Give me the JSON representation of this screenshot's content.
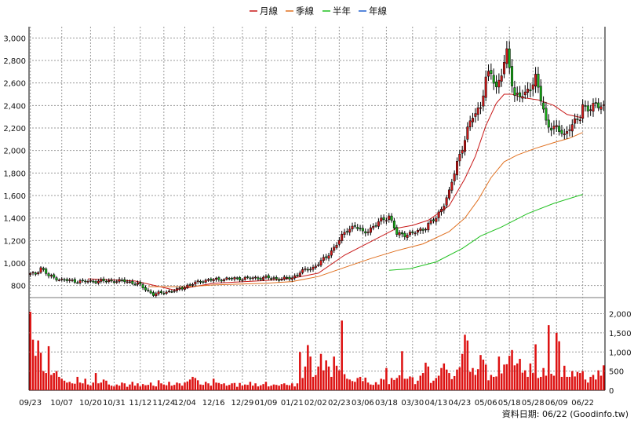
{
  "legend": [
    {
      "label": "月線",
      "color": "#c81818"
    },
    {
      "label": "季線",
      "color": "#e07020"
    },
    {
      "label": "半年",
      "color": "#20c020"
    },
    {
      "label": "年線",
      "color": "#2060d0"
    }
  ],
  "footer": "資料日期: 06/22  (Goodinfo.tw)",
  "colors": {
    "up": "#d01818",
    "down": "#18b018",
    "volume": "#dd1111",
    "wick": "#000000"
  },
  "chart_data": [
    {
      "type": "candlestick",
      "ylim": [
        700,
        3100
      ],
      "yticks": [
        800,
        1000,
        1200,
        1400,
        1600,
        1800,
        2000,
        2200,
        2400,
        2600,
        2800,
        3000
      ],
      "ytick_labels": [
        "800",
        "1,000",
        "1,200",
        "1,400",
        "1,600",
        "1,800",
        "2,000",
        "2,200",
        "2,400",
        "2,600",
        "2,800",
        "3,000"
      ],
      "x_tick_labels": [
        "09/23",
        "10/07",
        "10/20",
        "10/31",
        "11/12",
        "11/24",
        "12/04",
        "12/16",
        "12/29",
        "01/09",
        "01/21",
        "02/02",
        "02/23",
        "03/06",
        "03/18",
        "03/30",
        "04/13",
        "04/23",
        "05/06",
        "05/18",
        "05/28",
        "06/09",
        "06/22"
      ],
      "x_tick_index": [
        0,
        12,
        23,
        32,
        42,
        51,
        59,
        70,
        81,
        90,
        100,
        109,
        118,
        127,
        136,
        146,
        155,
        164,
        174,
        183,
        192,
        201,
        211
      ],
      "grid": true,
      "price_waypoints": [
        [
          0,
          900
        ],
        [
          2,
          905
        ],
        [
          4,
          960
        ],
        [
          7,
          885
        ],
        [
          12,
          850
        ],
        [
          20,
          835
        ],
        [
          28,
          840
        ],
        [
          36,
          840
        ],
        [
          41,
          815
        ],
        [
          47,
          720
        ],
        [
          51,
          740
        ],
        [
          56,
          760
        ],
        [
          60,
          800
        ],
        [
          66,
          845
        ],
        [
          75,
          860
        ],
        [
          83,
          865
        ],
        [
          90,
          870
        ],
        [
          96,
          858
        ],
        [
          100,
          868
        ],
        [
          103,
          920
        ],
        [
          108,
          960
        ],
        [
          113,
          1050
        ],
        [
          118,
          1200
        ],
        [
          121,
          1300
        ],
        [
          124,
          1330
        ],
        [
          127,
          1270
        ],
        [
          131,
          1320
        ],
        [
          134,
          1380
        ],
        [
          137,
          1420
        ],
        [
          140,
          1255
        ],
        [
          146,
          1260
        ],
        [
          151,
          1320
        ],
        [
          155,
          1400
        ],
        [
          160,
          1620
        ],
        [
          163,
          1900
        ],
        [
          166,
          2100
        ],
        [
          169,
          2310
        ],
        [
          172,
          2400
        ],
        [
          174,
          2620
        ],
        [
          176,
          2700
        ],
        [
          178,
          2560
        ],
        [
          180,
          2690
        ],
        [
          182,
          2850
        ],
        [
          185,
          2500
        ],
        [
          189,
          2480
        ],
        [
          193,
          2660
        ],
        [
          197,
          2240
        ],
        [
          201,
          2200
        ],
        [
          204,
          2120
        ],
        [
          206,
          2230
        ],
        [
          208,
          2250
        ],
        [
          210,
          2280
        ],
        [
          211,
          2390
        ]
      ],
      "ma_series": [
        {
          "label": "月線",
          "color": "#c81818",
          "points": [
            [
              22,
              860
            ],
            [
              40,
              840
            ],
            [
              55,
              760
            ],
            [
              70,
              820
            ],
            [
              90,
              845
            ],
            [
              100,
              865
            ],
            [
              110,
              910
            ],
            [
              120,
              1070
            ],
            [
              130,
              1190
            ],
            [
              140,
              1310
            ],
            [
              146,
              1335
            ],
            [
              152,
              1380
            ],
            [
              160,
              1510
            ],
            [
              166,
              1750
            ],
            [
              170,
              1950
            ],
            [
              174,
              2220
            ],
            [
              178,
              2420
            ],
            [
              181,
              2500
            ],
            [
              184,
              2500
            ],
            [
              188,
              2470
            ],
            [
              194,
              2450
            ],
            [
              200,
              2400
            ],
            [
              205,
              2320
            ],
            [
              211,
              2290
            ]
          ]
        },
        {
          "label": "季線",
          "color": "#e07020",
          "points": [
            [
              45,
              790
            ],
            [
              60,
              790
            ],
            [
              70,
              805
            ],
            [
              90,
              820
            ],
            [
              100,
              835
            ],
            [
              110,
              880
            ],
            [
              120,
              960
            ],
            [
              130,
              1040
            ],
            [
              140,
              1110
            ],
            [
              150,
              1170
            ],
            [
              160,
              1280
            ],
            [
              166,
              1400
            ],
            [
              171,
              1560
            ],
            [
              176,
              1760
            ],
            [
              181,
              1900
            ],
            [
              186,
              1960
            ],
            [
              193,
              2020
            ],
            [
              200,
              2070
            ],
            [
              206,
              2110
            ],
            [
              211,
              2160
            ]
          ]
        },
        {
          "label": "半年",
          "color": "#20c020",
          "points": [
            [
              137,
              935
            ],
            [
              145,
              950
            ],
            [
              155,
              1010
            ],
            [
              165,
              1130
            ],
            [
              172,
              1240
            ],
            [
              180,
              1320
            ],
            [
              190,
              1440
            ],
            [
              200,
              1530
            ],
            [
              211,
              1610
            ]
          ]
        }
      ]
    },
    {
      "type": "bar",
      "ylim": [
        0,
        2400
      ],
      "yticks": [
        0,
        500,
        1000,
        1500,
        2000
      ],
      "ytick_labels": [
        "0",
        "500",
        "1,000",
        "1,500",
        "2,000"
      ],
      "unit": "volume",
      "values": [
        2050,
        1320,
        900,
        1300,
        980,
        500,
        450,
        1150,
        400,
        450,
        500,
        350,
        300,
        250,
        200,
        220,
        180,
        170,
        350,
        200,
        180,
        300,
        150,
        120,
        200,
        450,
        180,
        200,
        280,
        250,
        150,
        120,
        100,
        150,
        120,
        200,
        180,
        90,
        150,
        220,
        120,
        180,
        100,
        160,
        130,
        140,
        200,
        120,
        100,
        260,
        180,
        150,
        130,
        220,
        120,
        140,
        200,
        180,
        120,
        200,
        230,
        280,
        350,
        320,
        260,
        150,
        140,
        220,
        180,
        120,
        300,
        200,
        190,
        160,
        180,
        120,
        140,
        180,
        190,
        90,
        190,
        120,
        150,
        140,
        220,
        120,
        180,
        100,
        130,
        160,
        220,
        100,
        120,
        150,
        140,
        120,
        160,
        180,
        140,
        130,
        180,
        100,
        180,
        1000,
        320,
        620,
        1180,
        880,
        350,
        400,
        620,
        950,
        520,
        780,
        620,
        350,
        880,
        640,
        520,
        1820,
        420,
        300,
        280,
        240,
        220,
        320,
        350,
        240,
        330,
        200,
        150,
        140,
        210,
        150,
        300,
        280,
        580,
        160,
        320,
        270,
        320,
        390,
        1020,
        300,
        300,
        360,
        340,
        160,
        250,
        380,
        450,
        720,
        620,
        190,
        250,
        320,
        380,
        580,
        700,
        540,
        450,
        290,
        370,
        540,
        600,
        950,
        1450,
        1300,
        480,
        580,
        400,
        550,
        920,
        800,
        670,
        260,
        400,
        350,
        360,
        880,
        440,
        670,
        680,
        900,
        1050,
        650,
        700,
        820,
        460,
        520,
        350,
        700,
        450,
        1200,
        320,
        350,
        580,
        380,
        1700,
        430,
        380,
        1500,
        1280,
        350,
        640,
        350,
        350,
        500,
        360,
        480,
        450,
        500,
        280,
        200,
        350,
        400,
        280,
        520,
        380,
        650
      ]
    }
  ]
}
